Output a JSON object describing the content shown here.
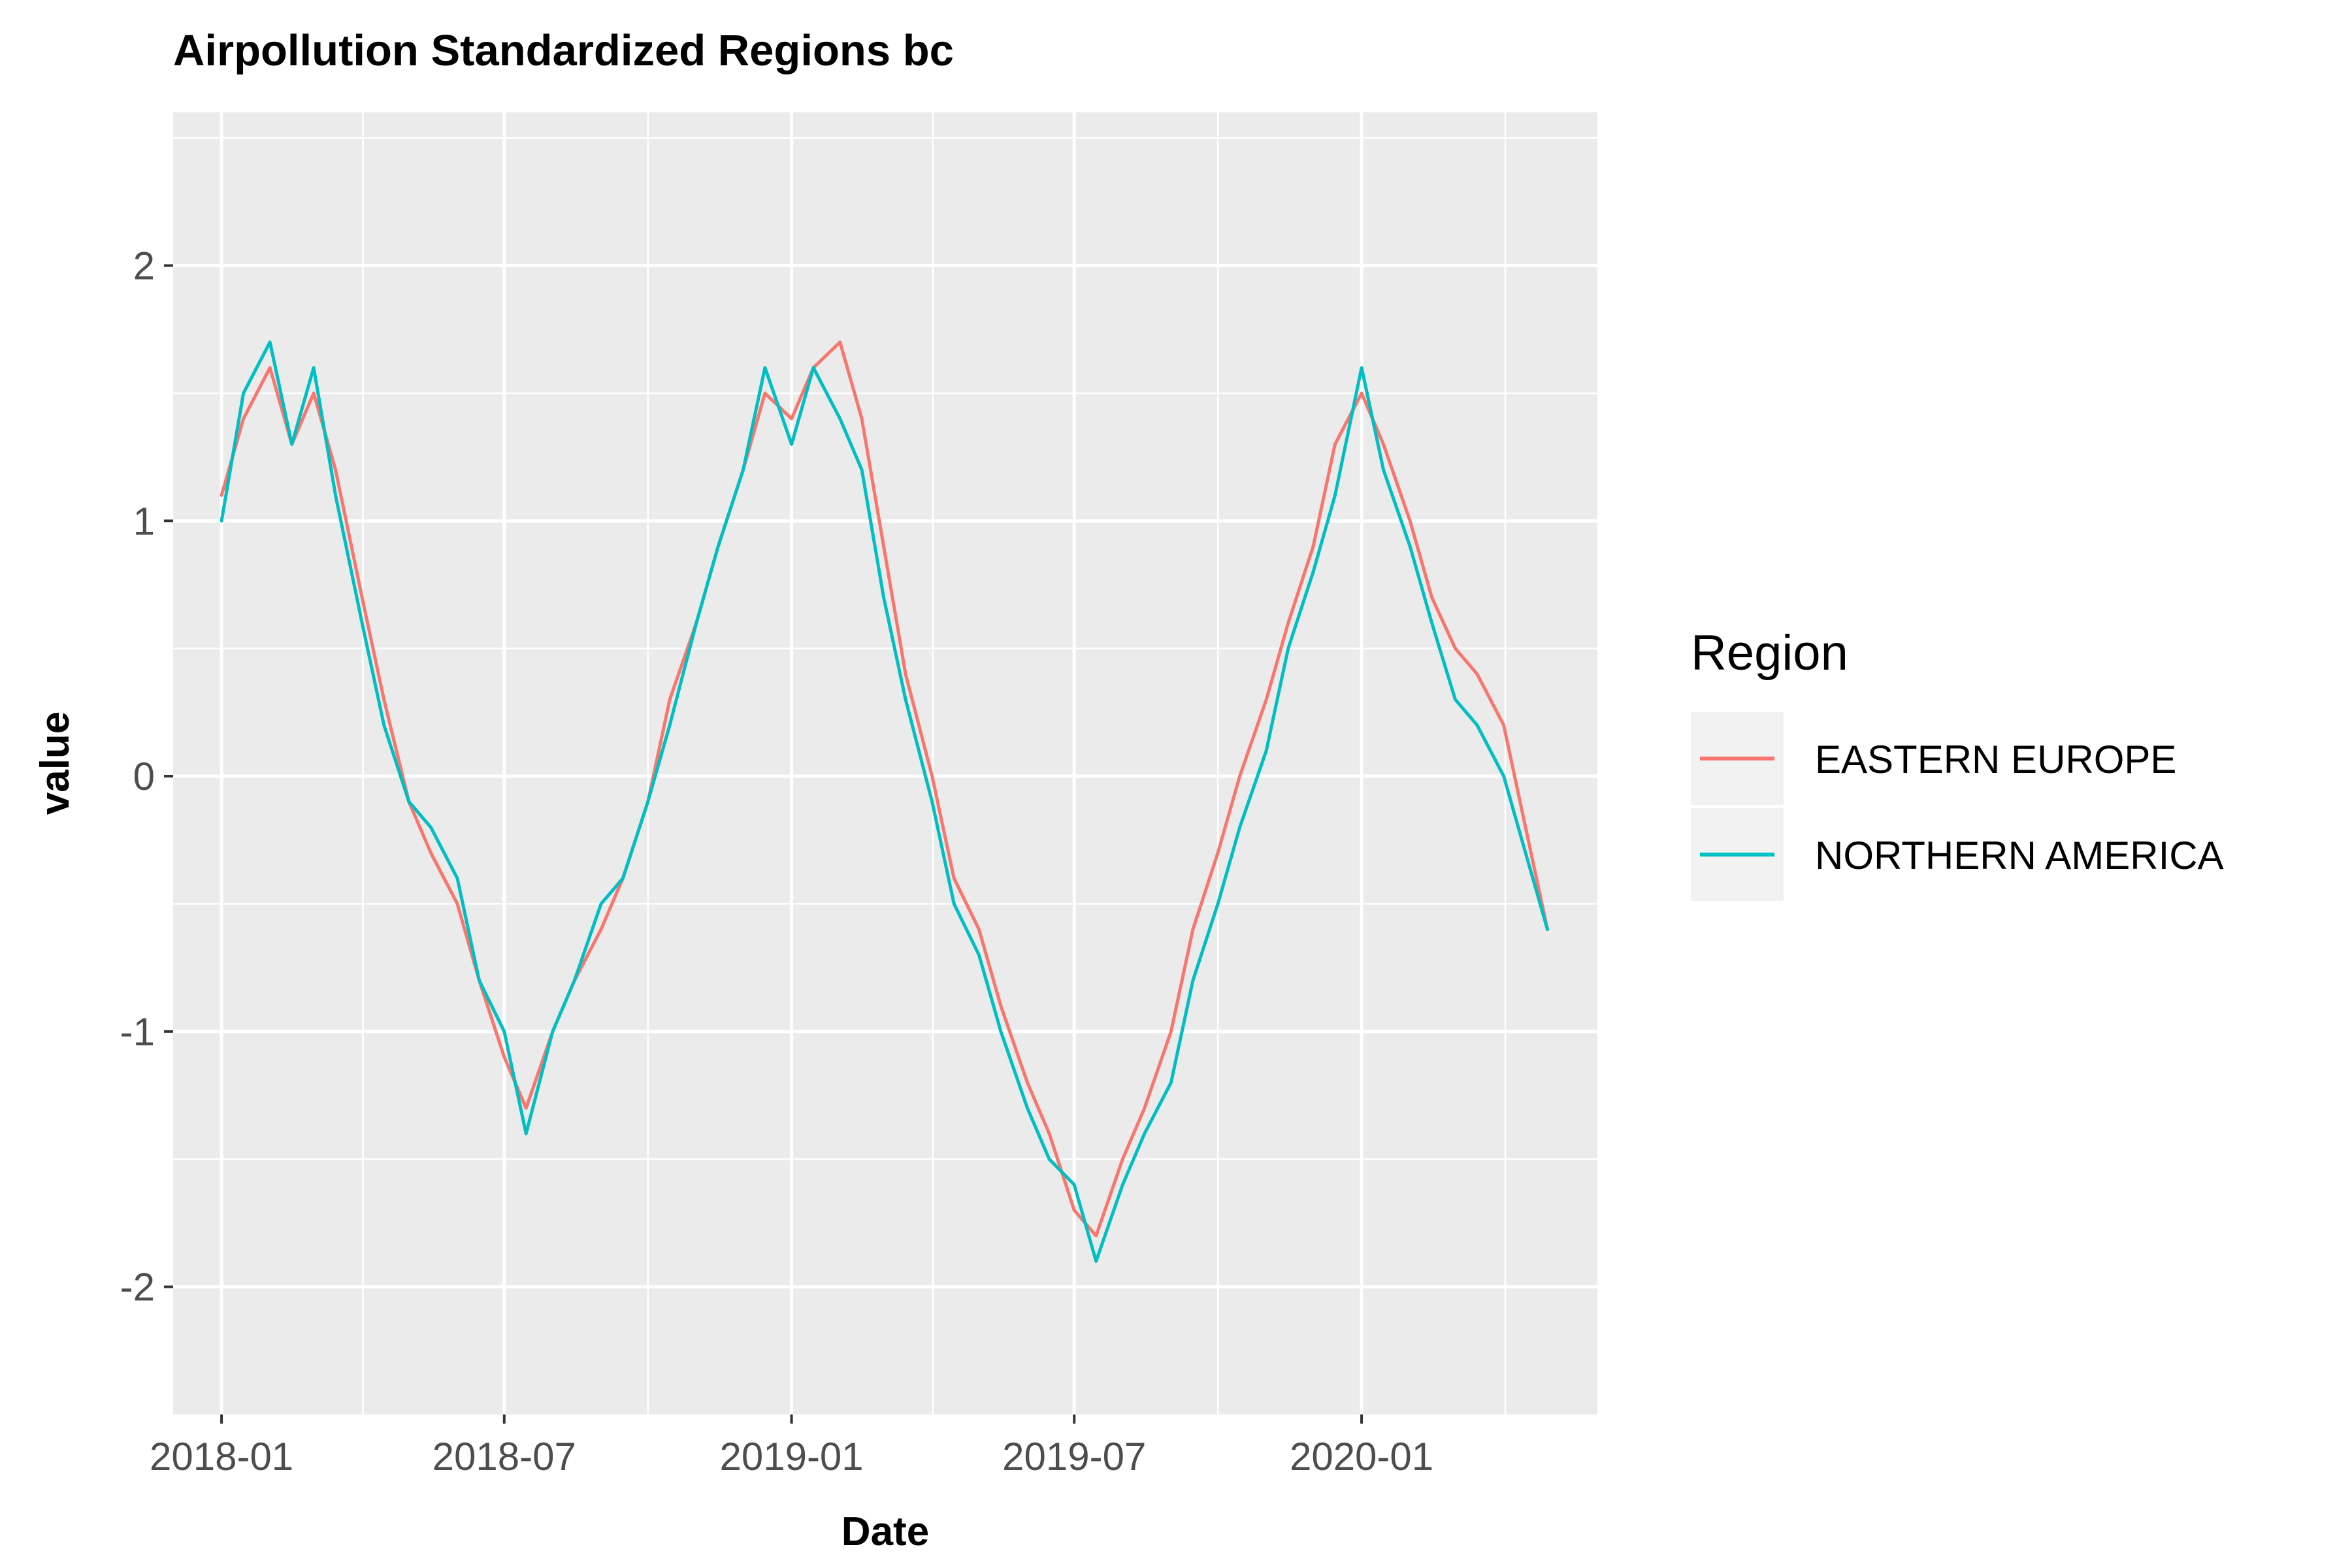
{
  "chart_data": {
    "type": "line",
    "title": "Airpollution Standardized Regions bc",
    "xlabel": "Date",
    "ylabel": "value",
    "x_range": [
      "2017-12-01",
      "2020-05-31"
    ],
    "ylim": [
      -2.5,
      2.6
    ],
    "x_ticks": [
      "2018-01",
      "2018-07",
      "2019-01",
      "2019-07",
      "2020-01"
    ],
    "y_ticks": [
      -2,
      -1,
      0,
      1,
      2
    ],
    "y_tick_labels": [
      "-2",
      "-1",
      "0",
      "1",
      "2"
    ],
    "grid": true,
    "legend": {
      "title": "Region",
      "position": "right"
    },
    "x": [
      "2018-01-01",
      "2018-01-15",
      "2018-02-01",
      "2018-02-15",
      "2018-03-01",
      "2018-03-15",
      "2018-04-01",
      "2018-04-15",
      "2018-05-01",
      "2018-05-15",
      "2018-06-01",
      "2018-06-15",
      "2018-07-01",
      "2018-07-15",
      "2018-08-01",
      "2018-08-15",
      "2018-09-01",
      "2018-09-15",
      "2018-10-01",
      "2018-10-15",
      "2018-11-01",
      "2018-11-15",
      "2018-12-01",
      "2018-12-15",
      "2019-01-01",
      "2019-01-15",
      "2019-02-01",
      "2019-02-15",
      "2019-03-01",
      "2019-03-15",
      "2019-04-01",
      "2019-04-15",
      "2019-05-01",
      "2019-05-15",
      "2019-06-01",
      "2019-06-15",
      "2019-07-01",
      "2019-07-15",
      "2019-08-01",
      "2019-08-15",
      "2019-09-01",
      "2019-09-15",
      "2019-10-01",
      "2019-10-15",
      "2019-11-01",
      "2019-11-15",
      "2019-12-01",
      "2019-12-15",
      "2020-01-01",
      "2020-01-15",
      "2020-02-01",
      "2020-02-15",
      "2020-03-01",
      "2020-03-15",
      "2020-04-01",
      "2020-04-15",
      "2020-04-29"
    ],
    "series": [
      {
        "name": "EASTERN EUROPE",
        "color": "#F8766D",
        "values": [
          1.1,
          1.4,
          1.6,
          1.3,
          1.5,
          1.2,
          0.7,
          0.3,
          -0.1,
          -0.3,
          -0.5,
          -0.8,
          -1.1,
          -1.3,
          -1.0,
          -0.8,
          -0.6,
          -0.4,
          -0.1,
          0.3,
          0.6,
          0.9,
          1.2,
          1.5,
          1.4,
          1.6,
          1.7,
          1.4,
          0.9,
          0.4,
          0.0,
          -0.4,
          -0.6,
          -0.9,
          -1.2,
          -1.4,
          -1.7,
          -1.8,
          -1.5,
          -1.3,
          -1.0,
          -0.6,
          -0.3,
          0.0,
          0.3,
          0.6,
          0.9,
          1.3,
          1.5,
          1.3,
          1.0,
          0.7,
          0.5,
          0.4,
          0.2,
          -0.2,
          -0.6
        ]
      },
      {
        "name": "NORTHERN AMERICA",
        "color": "#00BFC4",
        "values": [
          1.0,
          1.5,
          1.7,
          1.3,
          1.6,
          1.1,
          0.6,
          0.2,
          -0.1,
          -0.2,
          -0.4,
          -0.8,
          -1.0,
          -1.4,
          -1.0,
          -0.8,
          -0.5,
          -0.4,
          -0.1,
          0.2,
          0.6,
          0.9,
          1.2,
          1.6,
          1.3,
          1.6,
          1.4,
          1.2,
          0.7,
          0.3,
          -0.1,
          -0.5,
          -0.7,
          -1.0,
          -1.3,
          -1.5,
          -1.6,
          -1.9,
          -1.6,
          -1.4,
          -1.2,
          -0.8,
          -0.5,
          -0.2,
          0.1,
          0.5,
          0.8,
          1.1,
          1.6,
          1.2,
          0.9,
          0.6,
          0.3,
          0.2,
          0.0,
          -0.3,
          -0.6
        ]
      }
    ]
  }
}
